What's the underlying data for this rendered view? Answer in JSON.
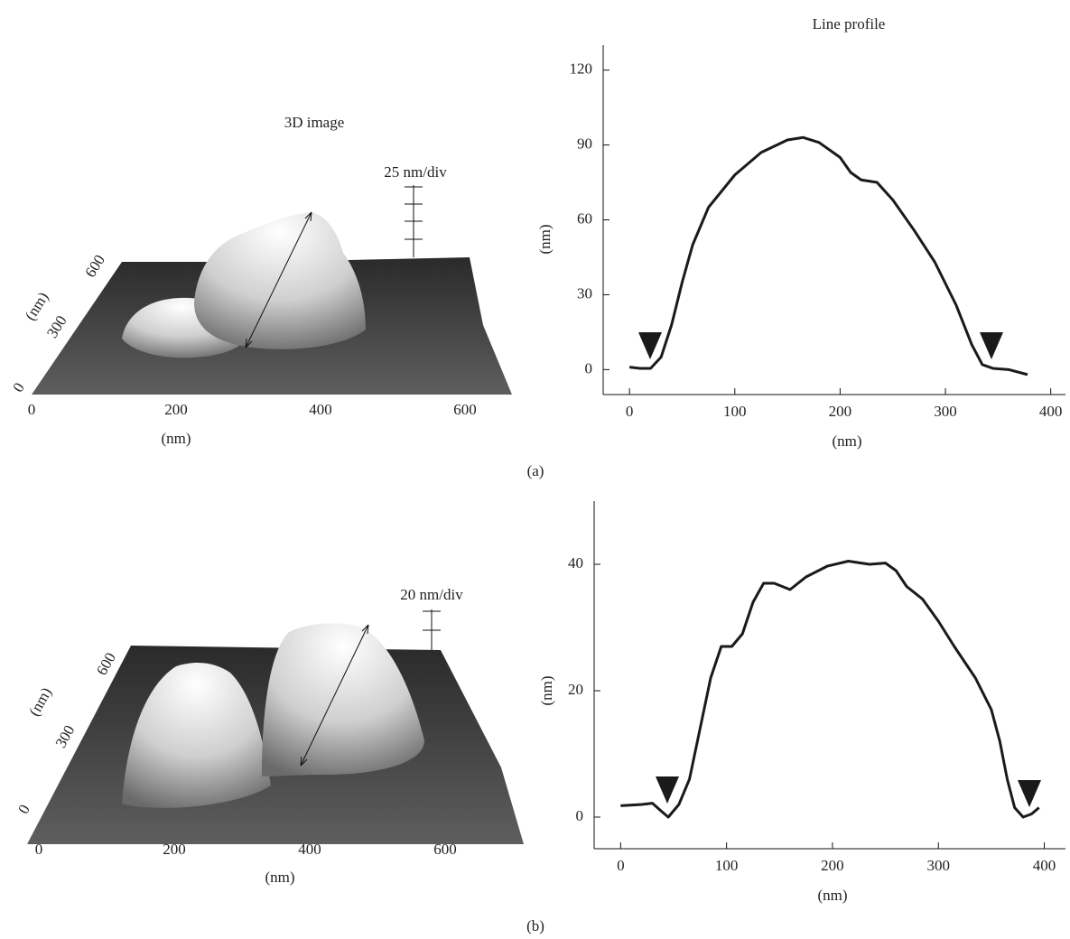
{
  "panel_labels": [
    "(a)",
    "(b)"
  ],
  "chart_data": [
    {
      "type": "surface3d",
      "title": "3D image",
      "xlabel": "(nm)",
      "ylabel": "(nm)",
      "scale_label": "25 nm/div",
      "xlim": [
        0,
        665
      ],
      "xticks": [
        0,
        200,
        400,
        600
      ],
      "ylim": [
        0,
        660
      ],
      "yticks": [
        0,
        300,
        600
      ]
    },
    {
      "type": "surface3d",
      "xlabel": "(nm)",
      "ylabel": "(nm)",
      "scale_label": "20 nm/div",
      "xlim": [
        0,
        700
      ],
      "xticks": [
        0,
        200,
        400,
        600
      ],
      "ylim": [
        0,
        660
      ],
      "yticks": [
        0,
        300,
        600
      ]
    },
    {
      "type": "line",
      "title": "Line profile",
      "xlabel": "(nm)",
      "ylabel": "(nm)",
      "color": "#1a1a1a",
      "xlim": [
        -25,
        414
      ],
      "xticks": [
        0,
        100,
        200,
        300,
        400
      ],
      "ylim": [
        -10,
        130
      ],
      "yticks": [
        0,
        30,
        60,
        90,
        120
      ],
      "x": [
        0,
        10,
        20,
        30,
        40,
        50,
        60,
        75,
        100,
        125,
        150,
        165,
        180,
        200,
        210,
        220,
        235,
        250,
        270,
        290,
        310,
        325,
        335,
        345,
        360,
        378
      ],
      "values": [
        1,
        0.5,
        0.5,
        5,
        18,
        35,
        50,
        65,
        78,
        87,
        92,
        93,
        91,
        85,
        79,
        76,
        75,
        68,
        56,
        43,
        26,
        10,
        2,
        0.5,
        0,
        -2
      ]
    },
    {
      "type": "line",
      "xlabel": "(nm)",
      "ylabel": "(nm)",
      "color": "#1a1a1a",
      "xlim": [
        -25,
        420
      ],
      "xticks": [
        0,
        100,
        200,
        300,
        400
      ],
      "ylim": [
        -5,
        50
      ],
      "yticks": [
        0,
        20,
        40
      ],
      "x": [
        0,
        20,
        30,
        38,
        45,
        55,
        65,
        75,
        85,
        95,
        105,
        115,
        125,
        135,
        145,
        160,
        175,
        195,
        215,
        235,
        250,
        260,
        270,
        285,
        300,
        315,
        335,
        350,
        358,
        365,
        372,
        380,
        388,
        395
      ],
      "values": [
        1.8,
        2,
        2.2,
        1,
        0,
        2,
        6,
        14,
        22,
        27,
        27,
        29,
        34,
        37,
        37,
        36,
        38,
        39.7,
        40.5,
        40,
        40.2,
        39,
        36.5,
        34.5,
        31,
        27,
        22,
        17,
        12,
        6,
        1.5,
        0,
        0.5,
        1.5
      ]
    }
  ]
}
